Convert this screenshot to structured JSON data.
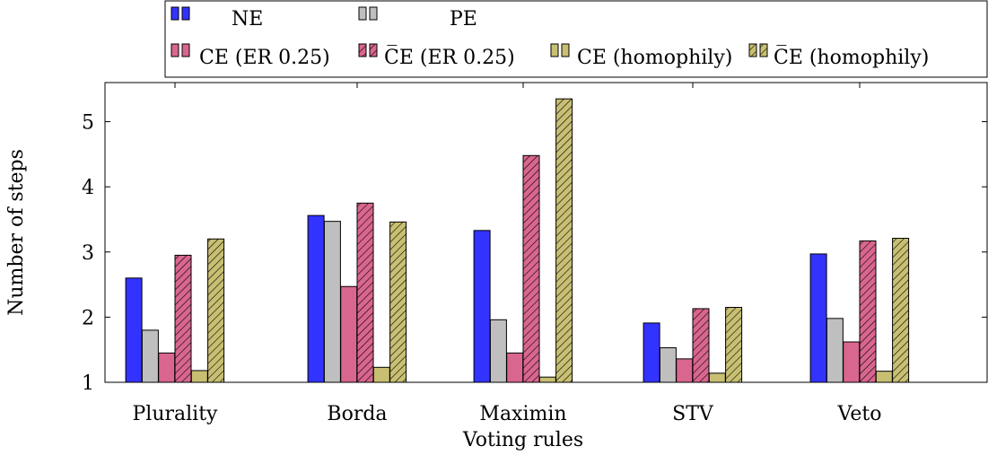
{
  "chart_data": {
    "type": "bar",
    "xlabel": "Voting rules",
    "ylabel": "Number of steps",
    "categories": [
      "Plurality",
      "Borda",
      "Maximin",
      "STV",
      "Veto"
    ],
    "ylim": [
      1,
      5.6
    ],
    "yticks": [
      1,
      2,
      3,
      4,
      5
    ],
    "legend_placement": "top",
    "series": [
      {
        "name": "NE",
        "values": [
          2.6,
          3.56,
          3.33,
          1.91,
          2.97
        ],
        "color": "#3333ff",
        "hatch": false
      },
      {
        "name": "PE",
        "values": [
          1.8,
          3.47,
          1.96,
          1.53,
          1.98
        ],
        "color": "#bfbfbf",
        "hatch": false
      },
      {
        "name": "CE (ER 0.25)",
        "values": [
          1.45,
          2.47,
          1.45,
          1.36,
          1.62
        ],
        "color": "#d9668f",
        "hatch": false
      },
      {
        "name": "C̅E (ER 0.25)",
        "values": [
          2.95,
          3.75,
          4.48,
          2.13,
          3.17
        ],
        "color": "#d9668f",
        "hatch": true
      },
      {
        "name": "CE (homophily)",
        "values": [
          1.18,
          1.23,
          1.08,
          1.14,
          1.17
        ],
        "color": "#c8bf72",
        "hatch": false
      },
      {
        "name": "C̅E (homophily)",
        "values": [
          3.2,
          3.46,
          5.35,
          2.15,
          3.21
        ],
        "color": "#c8bf72",
        "hatch": true
      }
    ]
  }
}
